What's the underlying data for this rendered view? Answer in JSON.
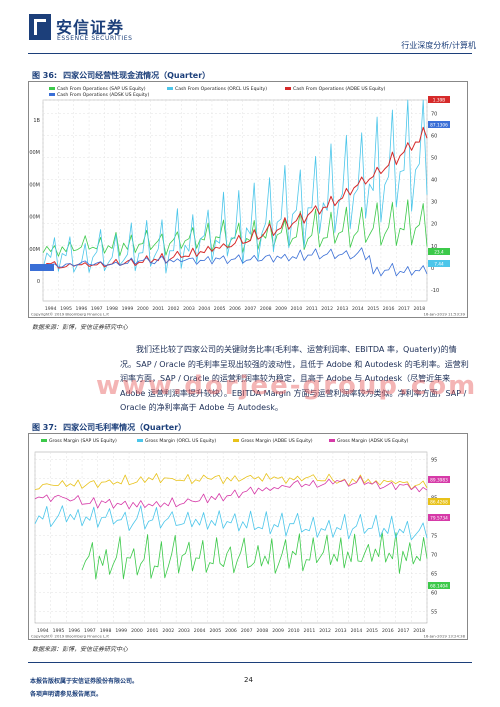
{
  "header": {
    "logo_cn": "安信证券",
    "logo_en": "ESSENCE SECURITIES",
    "report_type": "行业深度分析/计算机",
    "brand_color": "#1c3f7a"
  },
  "figure36": {
    "label": "图 36:",
    "title": "四家公司经营性现金流情况（Quarter）",
    "source": "数据来源：彭博，安信证券研究中心",
    "footnote_left": "Copyright© 2019 Bloomberg Finance L.P.",
    "footnote_right": "16-Jan-2019 11:53:39",
    "chart_data": {
      "type": "line",
      "x_years": [
        "1994",
        "1995",
        "1996",
        "1997",
        "1998",
        "1999",
        "2000",
        "2001",
        "2002",
        "2003",
        "2004",
        "2005",
        "2006",
        "2007",
        "2008",
        "2009",
        "2010",
        "2011",
        "2012",
        "2013",
        "2014",
        "2015",
        "2016",
        "2017",
        "2018"
      ],
      "left_axis": {
        "ticks": [
          "0",
          "200M",
          "400M",
          "600M",
          "800M",
          "1B"
        ],
        "range": [
          0,
          1200
        ]
      },
      "right_axis": {
        "ticks": [
          "76",
          "70",
          "60",
          "50",
          "40",
          "30",
          "20",
          "10",
          "0",
          "-10"
        ],
        "range": [
          -15,
          76
        ]
      },
      "legend": [
        {
          "name": "Cash From Operations (SAP US Equity)",
          "color": "#3cc94a"
        },
        {
          "name": "Cash From Operations (ORCL US Equity)",
          "color": "#4cc6ea"
        },
        {
          "name": "Cash From Operations (ADBE US Equity)",
          "color": "#d62a2a"
        },
        {
          "name": "Cash From Operations (ADSK US Equity)",
          "color": "#3a6fd6"
        }
      ],
      "value_tags": [
        {
          "text": "1.39B",
          "color": "#d62a2a"
        },
        {
          "text": "87.1306",
          "color": "#3a6fd6"
        },
        {
          "text": "23.4",
          "color": "#3cc94a"
        },
        {
          "text": "7.44",
          "color": "#4cc6ea"
        }
      ]
    }
  },
  "paragraph": "我们还比较了四家公司的关键财务比率(毛利率、运营利润率、EBITDA 率，Quaterly)的情况。SAP / Oracle 的毛利率呈现出较强的波动性，且低于 Adobe 和 Autodesk 的毛利率。运营利润率方面，SAP / Oracle 的运营利润率较为稳定，且高于 Adobe 与 Autodesk（尽管近年来 Adobe 运营利润率提升较快）。EBITDA Margin 方面与运营利润率较为类似。净利率方面，SAP / Oracle 的净利率高于 Adobe 与 Autodesk。",
  "watermark": "www.dorjee-group.com",
  "figure37": {
    "label": "图 37:",
    "title": "四家公司毛利率情况（Quarter）",
    "source": "数据来源：彭博，安信证券研究中心",
    "footnote_left": "Copyright© 2019 Bloomberg Finance L.P.",
    "footnote_right": "16-Jan-2019 13:24:38",
    "chart_data": {
      "type": "line",
      "x_years": [
        "1994",
        "1995",
        "1996",
        "1997",
        "1998",
        "1999",
        "2000",
        "2001",
        "2002",
        "2003",
        "2004",
        "2005",
        "2006",
        "2007",
        "2008",
        "2009",
        "2010",
        "2011",
        "2012",
        "2013",
        "2014",
        "2015",
        "2016",
        "2017",
        "2018"
      ],
      "right_axis": {
        "ticks": [
          "95",
          "90",
          "85",
          "80",
          "75",
          "70",
          "65",
          "60",
          "55"
        ],
        "range": [
          52,
          97
        ]
      },
      "legend": [
        {
          "name": "Gross Margin (SAP US Equity)",
          "color": "#3cc94a"
        },
        {
          "name": "Gross Margin (ORCL US Equity)",
          "color": "#4cc6ea"
        },
        {
          "name": "Gross Margin (ADBE US Equity)",
          "color": "#e8c21a"
        },
        {
          "name": "Gross Margin (ADSK US Equity)",
          "color": "#d63aa8"
        }
      ],
      "value_tags": [
        {
          "text": "89.3983",
          "color": "#d63aa8"
        },
        {
          "text": "86.4268",
          "color": "#e8c21a"
        },
        {
          "text": "79.5734",
          "color": "#d63aa8"
        },
        {
          "text": "68.1404",
          "color": "#3cc94a"
        }
      ]
    }
  },
  "footer": {
    "line1": "本报告版权属于安信证券股份有限公司。",
    "line2": "各项声明请参见报告尾页。",
    "page": "24"
  }
}
